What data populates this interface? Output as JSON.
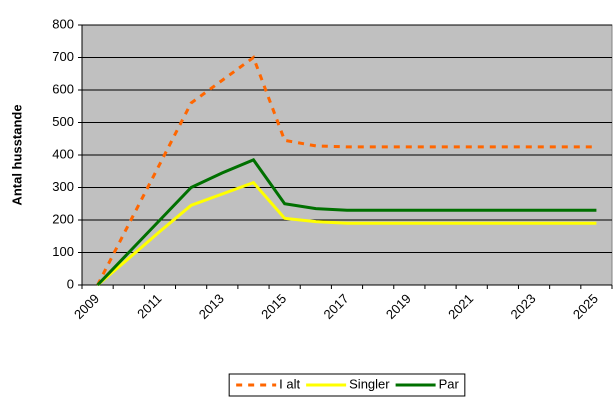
{
  "chart_data": {
    "type": "line",
    "y_label": "Antal husstande",
    "categories": [
      "2009",
      null,
      "2011",
      null,
      "2013",
      null,
      "2015",
      null,
      "2017",
      null,
      "2019",
      null,
      "2021",
      null,
      "2023",
      null,
      "2025"
    ],
    "series": [
      {
        "name": "I alt",
        "color": "#ff6600",
        "dashed": true,
        "values": [
          0,
          187,
          373,
          560,
          630,
          700,
          445,
          428,
          425,
          425,
          425,
          425,
          425,
          425,
          425,
          425,
          425
        ]
      },
      {
        "name": "Singler",
        "color": "#ffff00",
        "values": [
          0,
          82,
          165,
          245,
          280,
          315,
          205,
          195,
          190,
          190,
          190,
          190,
          190,
          190,
          190,
          190,
          190
        ]
      },
      {
        "name": "Par",
        "color": "#007000",
        "values": [
          0,
          100,
          200,
          300,
          345,
          385,
          250,
          235,
          230,
          230,
          230,
          230,
          230,
          230,
          230,
          230,
          230
        ]
      }
    ],
    "ylim": [
      0,
      800
    ],
    "yticks": [
      0,
      100,
      200,
      300,
      400,
      500,
      600,
      700,
      800
    ],
    "grid": true,
    "legend": "bottom",
    "plot_background": "#c0c0c0"
  }
}
